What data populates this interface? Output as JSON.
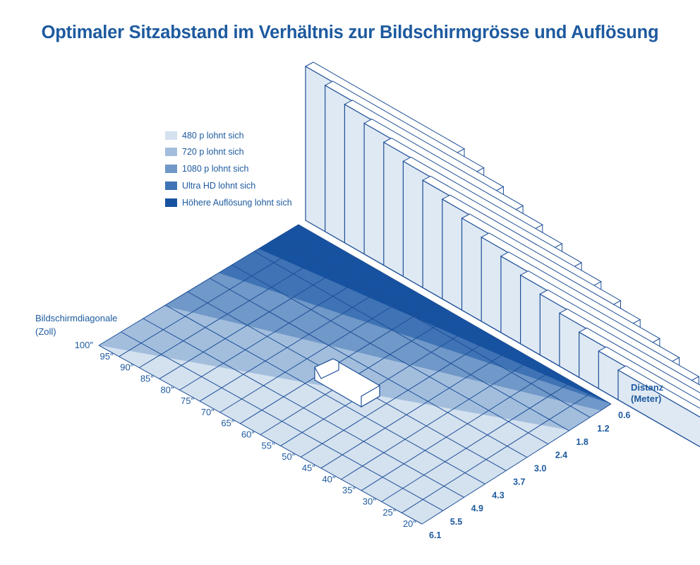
{
  "title": "Optimaler Sitzabstand im Verhältnis zur Bildschirmgrösse und Auflösung",
  "legend": [
    {
      "label": "480 p lohnt sich",
      "color": "#d4e1ef"
    },
    {
      "label": "720 p lohnt sich",
      "color": "#a3bedd"
    },
    {
      "label": "1080 p lohnt sich",
      "color": "#7098c8"
    },
    {
      "label": "Ultra HD lohnt sich",
      "color": "#3f73b5"
    },
    {
      "label": "Höhere Auflösung lohnt sich",
      "color": "#1752a0"
    }
  ],
  "axis": {
    "size_label_line1": "Bildschirmdiagonale",
    "size_label_line2": "(Zoll)",
    "distance_label_line1": "Distanz",
    "distance_label_line2": "(Meter)"
  },
  "chart_data": {
    "type": "area",
    "title": "Optimaler Sitzabstand im Verhältnis zur Bildschirmgrösse und Auflösung",
    "xlabel": "Distanz (Meter)",
    "ylabel": "Bildschirmdiagonale (Zoll)",
    "distance_ticks": [
      "0.6",
      "1.2",
      "1.8",
      "2.4",
      "3.0",
      "3.7",
      "4.3",
      "4.9",
      "5.5",
      "6.1"
    ],
    "size_ticks": [
      "100″",
      "95″",
      "90″",
      "85″",
      "80″",
      "75″",
      "70″",
      "65″",
      "60″",
      "55″",
      "50″",
      "45″",
      "40″",
      "35″",
      "30″",
      "25″",
      "20″"
    ],
    "size_values": [
      100,
      95,
      90,
      85,
      80,
      75,
      70,
      65,
      60,
      55,
      50,
      45,
      40,
      35,
      30,
      25,
      20
    ],
    "distance_values": [
      0.6,
      1.2,
      1.8,
      2.4,
      3.0,
      3.7,
      4.3,
      4.9,
      5.5,
      6.1
    ],
    "series": [
      {
        "name": "Höhere Auflösung lohnt sich",
        "boundary_distance_m": [
          {
            "size": 100,
            "distance": 1.7
          },
          {
            "size": 20,
            "distance": 0.6
          }
        ]
      },
      {
        "name": "Ultra HD lohnt sich",
        "boundary_distance_m": [
          {
            "size": 100,
            "distance": 2.8
          },
          {
            "size": 20,
            "distance": 0.6
          }
        ]
      },
      {
        "name": "1080 p lohnt sich",
        "boundary_distance_m": [
          {
            "size": 100,
            "distance": 4.3
          },
          {
            "size": 20,
            "distance": 0.9
          }
        ]
      },
      {
        "name": "720 p lohnt sich",
        "boundary_distance_m": [
          {
            "size": 100,
            "distance": 6.1
          },
          {
            "size": 20,
            "distance": 1.8
          }
        ]
      },
      {
        "name": "480 p lohnt sich",
        "boundary_distance_m": [
          {
            "size": 100,
            "distance": 6.1
          },
          {
            "size": 20,
            "distance": 6.1
          }
        ]
      }
    ]
  }
}
